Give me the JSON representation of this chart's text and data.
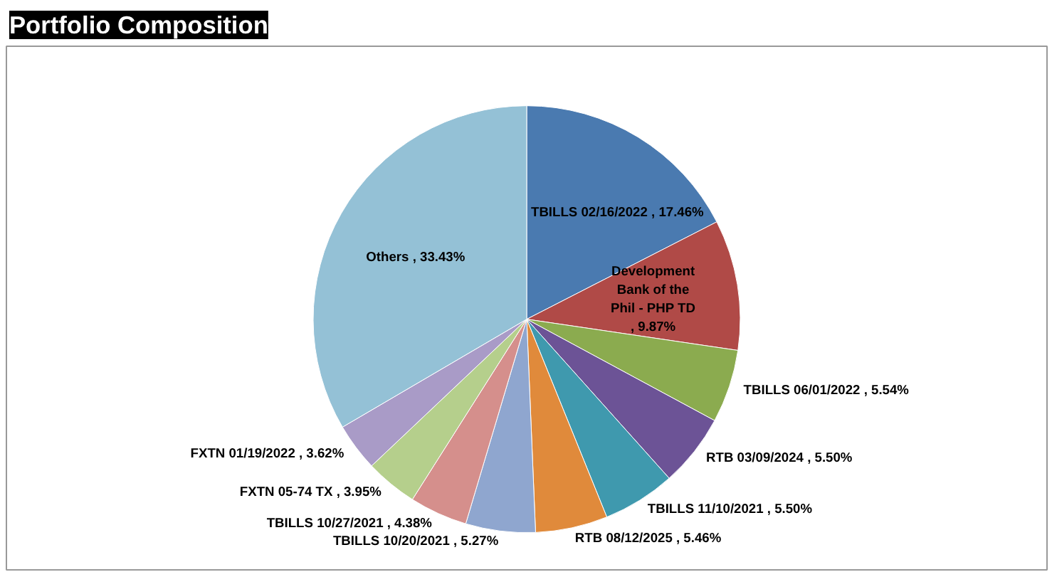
{
  "chart_data": {
    "type": "pie",
    "title": "Portfolio Composition",
    "categories": [
      "TBILLS 02/16/2022",
      "Development Bank of the Phil - PHP TD",
      "TBILLS 06/01/2022",
      "RTB 03/09/2024",
      "TBILLS 11/10/2021",
      "RTB 08/12/2025",
      "TBILLS 10/20/2021",
      "TBILLS 10/27/2021",
      "FXTN 05-74 TX",
      "FXTN 01/19/2022",
      "Others"
    ],
    "values": [
      17.46,
      9.87,
      5.54,
      5.5,
      5.5,
      5.46,
      5.27,
      4.38,
      3.95,
      3.62,
      33.43
    ],
    "colors": [
      "#4a7ab0",
      "#b04a47",
      "#8bab4f",
      "#6c5396",
      "#3f99ae",
      "#e08a3b",
      "#8fa6cf",
      "#d58f8c",
      "#b5cf8c",
      "#a99bc7",
      "#94c1d6"
    ],
    "value_labels": [
      ", 17.46%",
      ", 9.87%",
      ", 5.54%",
      ", 5.50%",
      ", 5.50%",
      ", 5.46%",
      ", 5.27%",
      ", 4.38%",
      ", 3.95%",
      ", 3.62%",
      ", 33.43%"
    ]
  }
}
